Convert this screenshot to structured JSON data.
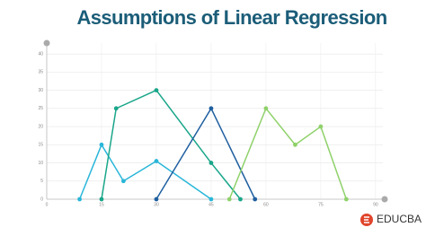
{
  "chart_data": {
    "type": "line",
    "title": "Assumptions of Linear Regression",
    "watermark": "EDUCBA",
    "xlim": [
      0,
      92
    ],
    "xticks": [
      0,
      15,
      30,
      45,
      60,
      75,
      90
    ],
    "ylim": [
      0,
      43
    ],
    "yticks": [
      0,
      5,
      10,
      15,
      20,
      25,
      30,
      35,
      40
    ],
    "grid": true,
    "series": [
      {
        "color": "#29b6d9",
        "x": [
          9,
          15,
          21,
          30,
          45
        ],
        "values": [
          0,
          15,
          5,
          10.5,
          0
        ]
      },
      {
        "color": "#1aa68a",
        "x": [
          15,
          19,
          30,
          45,
          53
        ],
        "values": [
          0,
          25,
          30,
          10,
          0
        ]
      },
      {
        "color": "#1f5fa0",
        "x": [
          30,
          45,
          57
        ],
        "values": [
          0,
          25,
          0
        ]
      },
      {
        "color": "#8fd16a",
        "x": [
          50,
          60,
          68,
          75,
          82
        ],
        "values": [
          0,
          25,
          15,
          20,
          0
        ]
      }
    ]
  }
}
